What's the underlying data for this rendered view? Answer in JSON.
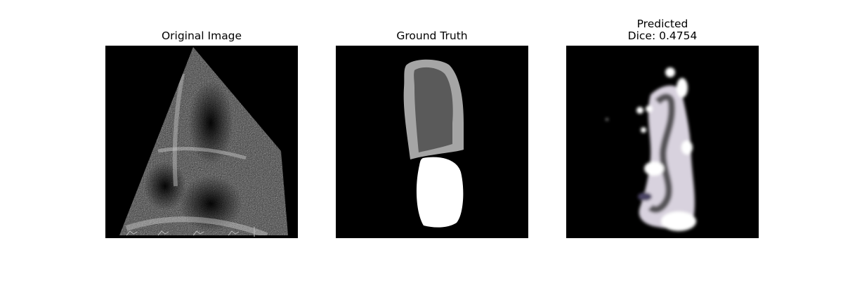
{
  "panels": [
    {
      "title": "Original Image"
    },
    {
      "title": "Ground Truth"
    },
    {
      "title_line1": "Predicted",
      "title_line2": "Dice: 0.4754"
    }
  ]
}
